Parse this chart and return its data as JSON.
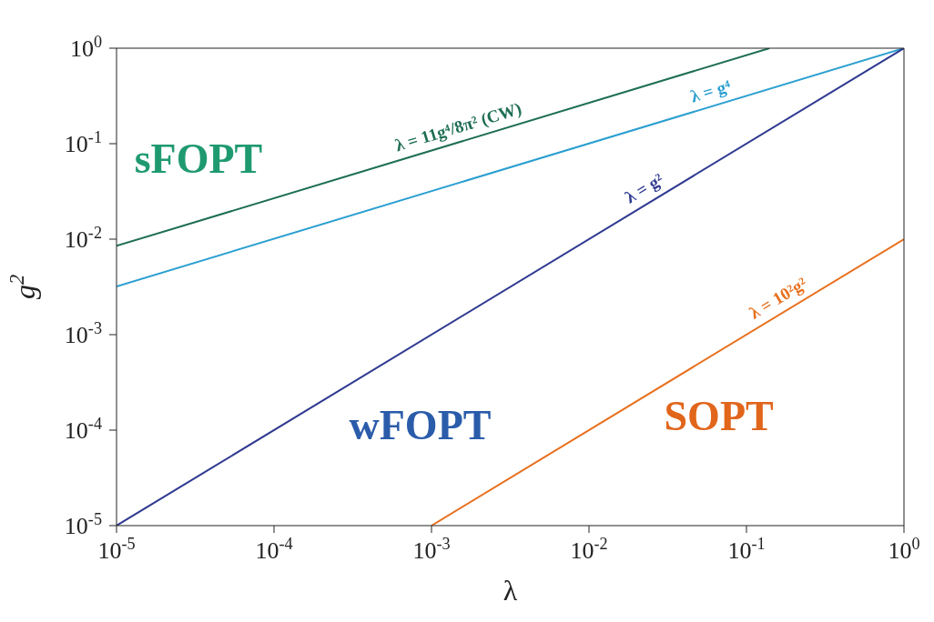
{
  "chart_data": {
    "type": "line",
    "xlabel": "λ",
    "ylabel": "g$^{2}$",
    "log": "xy",
    "marker": "none",
    "line_style": "solid",
    "xlim": [
      1e-05,
      1
    ],
    "ylim": [
      1e-05,
      1
    ],
    "xticks": [
      {
        "value": 1e-05,
        "label": "10$^{-5}$"
      },
      {
        "value": 0.0001,
        "label": "10$^{-4}$"
      },
      {
        "value": 0.001,
        "label": "10$^{-3}$"
      },
      {
        "value": 0.01,
        "label": "10$^{-2}$"
      },
      {
        "value": 0.1,
        "label": "10$^{-1}$"
      },
      {
        "value": 1,
        "label": "10$^{0}$"
      }
    ],
    "yticks": [
      {
        "value": 1e-05,
        "label": "10$^{-5}$"
      },
      {
        "value": 0.0001,
        "label": "10$^{-4}$"
      },
      {
        "value": 0.001,
        "label": "10$^{-3}$"
      },
      {
        "value": 0.01,
        "label": "10$^{-2}$"
      },
      {
        "value": 0.1,
        "label": "10$^{-1}$"
      },
      {
        "value": 1,
        "label": "10$^{0}$"
      }
    ],
    "series": [
      {
        "name": "λ = 11g⁴/8π² (CW)",
        "color": "#1e6e55",
        "x": [
          1e-05,
          0.14
        ],
        "values": [
          0.0085,
          1
        ]
      },
      {
        "name": "λ = g⁴",
        "color": "#2b9fd0",
        "x": [
          1e-05,
          1
        ],
        "values": [
          0.0032,
          1
        ]
      },
      {
        "name": "λ = g²",
        "color": "#2f3a90",
        "x": [
          1e-05,
          1
        ],
        "values": [
          1e-05,
          1
        ]
      },
      {
        "name": "λ = 10²g²",
        "color": "#e8701e",
        "x": [
          0.001,
          1
        ],
        "values": [
          1e-05,
          0.01
        ]
      }
    ],
    "annotations": [
      "sFOPT",
      "wFOPT",
      "SOPT"
    ]
  }
}
